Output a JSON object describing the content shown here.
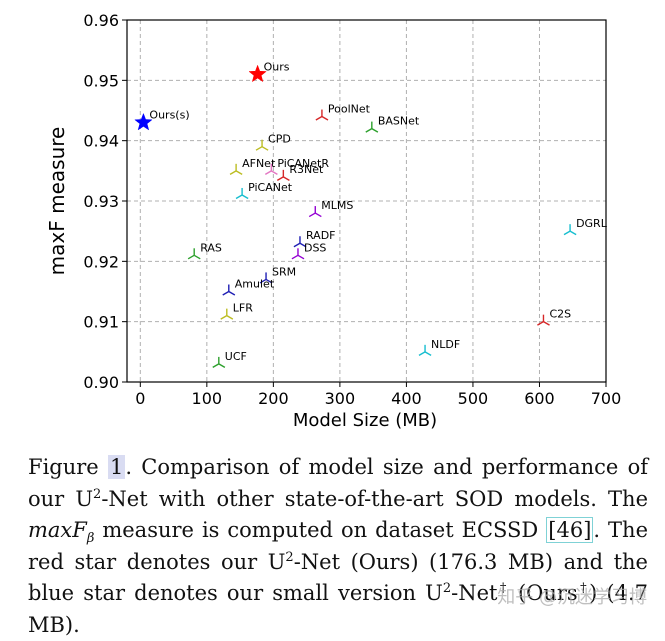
{
  "chart_data": {
    "type": "scatter",
    "title": "",
    "xlabel": "Model Size (MB)",
    "ylabel": "maxF measure",
    "xlim": [
      -20,
      700
    ],
    "ylim": [
      0.9,
      0.96
    ],
    "xticks": [
      0,
      100,
      200,
      300,
      400,
      500,
      600,
      700
    ],
    "yticks": [
      0.9,
      0.91,
      0.92,
      0.93,
      0.94,
      0.95,
      0.96
    ],
    "grid": true,
    "points": [
      {
        "name": "Ours",
        "x": 176.3,
        "y": 0.951,
        "marker": "star",
        "color": "#ff0000"
      },
      {
        "name": "Ours(s)",
        "x": 4.7,
        "y": 0.943,
        "marker": "star",
        "color": "#0000ff"
      },
      {
        "name": "PoolNet",
        "x": 273,
        "y": 0.944,
        "marker": "tri",
        "color": "#d62728"
      },
      {
        "name": "BASNet",
        "x": 348,
        "y": 0.942,
        "marker": "tri",
        "color": "#2ca02c"
      },
      {
        "name": "CPD",
        "x": 183,
        "y": 0.939,
        "marker": "tri",
        "color": "#bcbd22"
      },
      {
        "name": "AFNet",
        "x": 144,
        "y": 0.935,
        "marker": "tri",
        "color": "#bcbd22"
      },
      {
        "name": "PiCANetR",
        "x": 197,
        "y": 0.935,
        "marker": "tri",
        "color": "#e377c2"
      },
      {
        "name": "R3Net",
        "x": 215,
        "y": 0.934,
        "marker": "tri",
        "color": "#d62728"
      },
      {
        "name": "PiCANet",
        "x": 153,
        "y": 0.931,
        "marker": "tri",
        "color": "#17becf"
      },
      {
        "name": "MLMS",
        "x": 263,
        "y": 0.928,
        "marker": "tri",
        "color": "#9400d3"
      },
      {
        "name": "DGRL",
        "x": 646,
        "y": 0.925,
        "marker": "tri",
        "color": "#17becf"
      },
      {
        "name": "RADF",
        "x": 240,
        "y": 0.923,
        "marker": "tri",
        "color": "#1f1fb4"
      },
      {
        "name": "DSS",
        "x": 237,
        "y": 0.921,
        "marker": "tri",
        "color": "#9400d3"
      },
      {
        "name": "RAS",
        "x": 81,
        "y": 0.921,
        "marker": "tri",
        "color": "#2ca02c"
      },
      {
        "name": "SRM",
        "x": 189,
        "y": 0.917,
        "marker": "tri",
        "color": "#1f1fb4"
      },
      {
        "name": "Amulet",
        "x": 133,
        "y": 0.915,
        "marker": "tri",
        "color": "#1f1fb4"
      },
      {
        "name": "LFR",
        "x": 130,
        "y": 0.911,
        "marker": "tri",
        "color": "#bcbd22"
      },
      {
        "name": "C2S",
        "x": 606,
        "y": 0.91,
        "marker": "tri",
        "color": "#d62728"
      },
      {
        "name": "NLDF",
        "x": 428,
        "y": 0.905,
        "marker": "tri",
        "color": "#17becf"
      },
      {
        "name": "UCF",
        "x": 118,
        "y": 0.903,
        "marker": "tri",
        "color": "#2ca02c"
      }
    ]
  },
  "caption": {
    "fig_label": "Figure",
    "fig_num": "1",
    "part1": ". Comparison of model size and performance of our U",
    "sup_2a": "2",
    "part2": "-Net with other state-of-the-art SOD models. The ",
    "math_maxF": "maxF",
    "math_sub": "β",
    "part3": " measure is computed on dataset ECSSD ",
    "ref_open": "[",
    "ref_num": "46",
    "ref_close": "]",
    "part4": ". The red star denotes our U",
    "sup_2b": "2",
    "part5": "-Net (Ours) (176.3 MB) and the blue star denotes our small version U",
    "sup_2c": "2",
    "part6": "-Net",
    "sup_dagger_a": "†",
    "part7": " (Ours",
    "sup_dagger_b": "†",
    "part8": ") (4.7 MB)."
  },
  "watermark": "知乎 @沉迷学习博"
}
